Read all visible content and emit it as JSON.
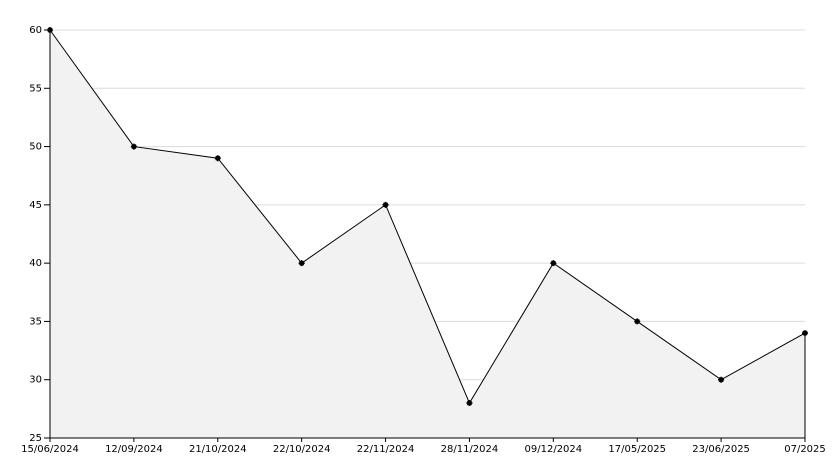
{
  "chart_data": {
    "type": "area-line",
    "categories": [
      "15/06/2024",
      "12/09/2024",
      "21/10/2024",
      "22/10/2024",
      "22/11/2024",
      "28/11/2024",
      "09/12/2024",
      "17/05/2025",
      "23/06/2025",
      "07/2025"
    ],
    "values": [
      60,
      50,
      49,
      40,
      45,
      28,
      40,
      35,
      30,
      34
    ],
    "color": "#000000",
    "fill_color": "#f2f2f2",
    "ylim": [
      25,
      60
    ],
    "yticks": [
      25,
      30,
      35,
      40,
      45,
      50,
      55,
      60
    ],
    "grid": true
  }
}
